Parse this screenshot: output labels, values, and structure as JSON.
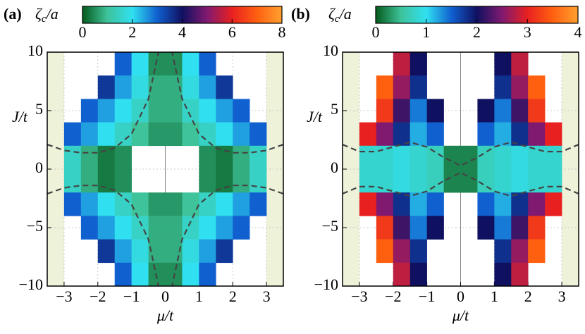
{
  "chart_data": [
    {
      "type": "heatmap",
      "panel_label": "(a)",
      "colorbar_label": {
        "symbol": "ζ",
        "subscript": "c",
        "rest": "/a"
      },
      "xlabel": "μ/t",
      "ylabel": "J/t",
      "xlim": [
        -3.5,
        3.5
      ],
      "ylim": [
        -10,
        10
      ],
      "xticks": [
        {
          "value": -3,
          "label": "−3"
        },
        {
          "value": -2,
          "label": "−2"
        },
        {
          "value": -1,
          "label": "−1"
        },
        0,
        1,
        2,
        3
      ],
      "yticks": [
        {
          "value": -10,
          "label": "−10"
        },
        {
          "value": -5,
          "label": "−5"
        },
        0,
        5,
        10
      ],
      "zlim": [
        0,
        8
      ],
      "zticks": [
        0,
        2,
        4,
        6,
        8
      ],
      "colormap": [
        "#055a1c",
        "#3ec39a",
        "#30e0f0",
        "#1060d0",
        "#101060",
        "#801a70",
        "#e82020",
        "#ff6010",
        "#ffa030"
      ],
      "x": [
        -3.25,
        -2.75,
        -2.25,
        -1.75,
        -1.25,
        -0.75,
        -0.25,
        0.25,
        0.75,
        1.25,
        1.75,
        2.25,
        2.75,
        3.25
      ],
      "y": [
        9,
        7,
        5,
        3,
        1,
        -1,
        -3,
        -5,
        -7,
        -9
      ],
      "z": [
        [
          null,
          null,
          null,
          null,
          3,
          2,
          0.5,
          0.5,
          2,
          3,
          null,
          null,
          null,
          null
        ],
        [
          null,
          null,
          null,
          3.5,
          2.5,
          1.8,
          0.8,
          0.8,
          1.8,
          2.5,
          3.5,
          null,
          null,
          null
        ],
        [
          null,
          null,
          3,
          2.5,
          2,
          1.5,
          0.8,
          0.8,
          1.5,
          2,
          2.5,
          3,
          null,
          null
        ],
        [
          null,
          3,
          2.5,
          2,
          1.5,
          1,
          0.6,
          0.6,
          1,
          1.5,
          2,
          2.5,
          3,
          null
        ],
        [
          null,
          1.5,
          0.8,
          0.3,
          0.5,
          null,
          null,
          null,
          null,
          0.5,
          0.3,
          0.8,
          1.5,
          null
        ],
        [
          null,
          1.5,
          0.8,
          0.3,
          0.5,
          null,
          null,
          null,
          null,
          0.5,
          0.3,
          0.8,
          1.5,
          null
        ],
        [
          null,
          3,
          2.5,
          2,
          1.5,
          1,
          0.6,
          0.6,
          1,
          1.5,
          2,
          2.5,
          3,
          null
        ],
        [
          null,
          null,
          3,
          2.5,
          2,
          1.5,
          0.8,
          0.8,
          1.5,
          2,
          2.5,
          3,
          null,
          null
        ],
        [
          null,
          null,
          null,
          3.5,
          2.5,
          1.8,
          0.8,
          0.8,
          1.8,
          2.5,
          3.5,
          null,
          null,
          null
        ],
        [
          null,
          null,
          null,
          null,
          3,
          2,
          0.5,
          0.5,
          2,
          3,
          null,
          null,
          null,
          null
        ]
      ],
      "curves": [
        {
          "x": [
            -3.5,
            -3,
            -2.5,
            -2,
            -1.5,
            -1,
            -0.5,
            -0.2
          ],
          "y": [
            2.1,
            1.6,
            1.4,
            1.4,
            1.8,
            3,
            6,
            10
          ]
        },
        {
          "x": [
            3.5,
            3,
            2.5,
            2,
            1.5,
            1,
            0.5,
            0.2
          ],
          "y": [
            2.1,
            1.6,
            1.4,
            1.4,
            1.8,
            3,
            6,
            10
          ]
        },
        {
          "x": [
            -3.5,
            -3,
            -2.5,
            -2,
            -1.5,
            -1,
            -0.5,
            -0.2
          ],
          "y": [
            -2.1,
            -1.6,
            -1.4,
            -1.4,
            -1.8,
            -3,
            -6,
            -10
          ]
        },
        {
          "x": [
            3.5,
            3,
            2.5,
            2,
            1.5,
            1,
            0.5,
            0.2
          ],
          "y": [
            -2.1,
            -1.6,
            -1.4,
            -1.4,
            -1.8,
            -3,
            -6,
            -10
          ]
        }
      ]
    },
    {
      "type": "heatmap",
      "panel_label": "(b)",
      "colorbar_label": {
        "symbol": "ζ",
        "subscript": "c",
        "rest": "/a"
      },
      "xlabel": "μ/t",
      "ylabel": "J/t",
      "xlim": [
        -3.5,
        3.5
      ],
      "ylim": [
        -10,
        10
      ],
      "xticks": [
        {
          "value": -3,
          "label": "−3"
        },
        {
          "value": -2,
          "label": "−2"
        },
        {
          "value": -1,
          "label": "−1"
        },
        0,
        1,
        2,
        3
      ],
      "yticks": [
        {
          "value": -10,
          "label": "−10"
        },
        {
          "value": -5,
          "label": "−5"
        },
        0,
        5,
        10
      ],
      "zlim": [
        0,
        4
      ],
      "zticks": [
        0,
        1,
        2,
        3,
        4
      ],
      "colormap": [
        "#055a1c",
        "#3ec39a",
        "#30e0f0",
        "#1060d0",
        "#101060",
        "#801a70",
        "#e82020",
        "#ff6010",
        "#ffa030"
      ],
      "x": [
        -3.25,
        -2.75,
        -2.25,
        -1.75,
        -1.25,
        -0.75,
        -0.25,
        0.25,
        0.75,
        1.25,
        1.75,
        2.25,
        2.75,
        3.25
      ],
      "y": [
        9,
        7,
        5,
        3,
        1,
        -1,
        -3,
        -5,
        -7,
        -9
      ],
      "z": [
        [
          null,
          null,
          null,
          2.8,
          2.0,
          null,
          null,
          null,
          null,
          2.0,
          2.8,
          null,
          null,
          null
        ],
        [
          null,
          null,
          3.5,
          2.6,
          1.8,
          null,
          null,
          null,
          null,
          1.8,
          2.6,
          3.5,
          null,
          null
        ],
        [
          null,
          null,
          3.2,
          2.2,
          1.4,
          2.0,
          null,
          null,
          2.0,
          1.4,
          2.2,
          3.2,
          null,
          null
        ],
        [
          null,
          3.0,
          2.5,
          1.8,
          1.2,
          1.5,
          null,
          null,
          1.5,
          1.2,
          1.8,
          2.5,
          3.0,
          null
        ],
        [
          null,
          0.8,
          0.8,
          0.9,
          0.8,
          0.7,
          0.2,
          0.2,
          0.7,
          0.8,
          0.9,
          0.8,
          0.8,
          null
        ],
        [
          null,
          0.8,
          0.8,
          0.9,
          0.8,
          0.7,
          0.2,
          0.2,
          0.7,
          0.8,
          0.9,
          0.8,
          0.8,
          null
        ],
        [
          null,
          3.0,
          2.5,
          1.8,
          1.2,
          1.5,
          null,
          null,
          1.5,
          1.2,
          1.8,
          2.5,
          3.0,
          null
        ],
        [
          null,
          null,
          3.2,
          2.2,
          1.4,
          2.0,
          null,
          null,
          2.0,
          1.4,
          2.2,
          3.2,
          null,
          null
        ],
        [
          null,
          null,
          3.5,
          2.6,
          1.8,
          null,
          null,
          null,
          null,
          1.8,
          2.6,
          3.5,
          null,
          null
        ],
        [
          null,
          null,
          null,
          2.8,
          2.0,
          null,
          null,
          null,
          null,
          2.0,
          2.8,
          null,
          null,
          null
        ]
      ],
      "curves": [
        {
          "x": [
            -3.5,
            -3,
            -2.5,
            -2,
            -1.5,
            -1,
            -0.5,
            0,
            0.5,
            1,
            1.5,
            2,
            2.5,
            3,
            3.5
          ],
          "y": [
            2.1,
            1.5,
            1.5,
            1.9,
            2.3,
            1.9,
            1.0,
            0.3,
            1.0,
            1.9,
            2.3,
            1.9,
            1.5,
            1.5,
            2.1
          ]
        },
        {
          "x": [
            -3.5,
            -3,
            -2.5,
            -2,
            -1.5,
            -1,
            -0.5,
            0,
            0.5,
            1,
            1.5,
            2,
            2.5,
            3,
            3.5
          ],
          "y": [
            -2.1,
            -1.5,
            -1.5,
            -1.9,
            -2.3,
            -1.9,
            -1.0,
            -0.3,
            -1.0,
            -1.9,
            -2.3,
            -1.9,
            -1.5,
            -1.5,
            -2.1
          ]
        }
      ]
    }
  ]
}
